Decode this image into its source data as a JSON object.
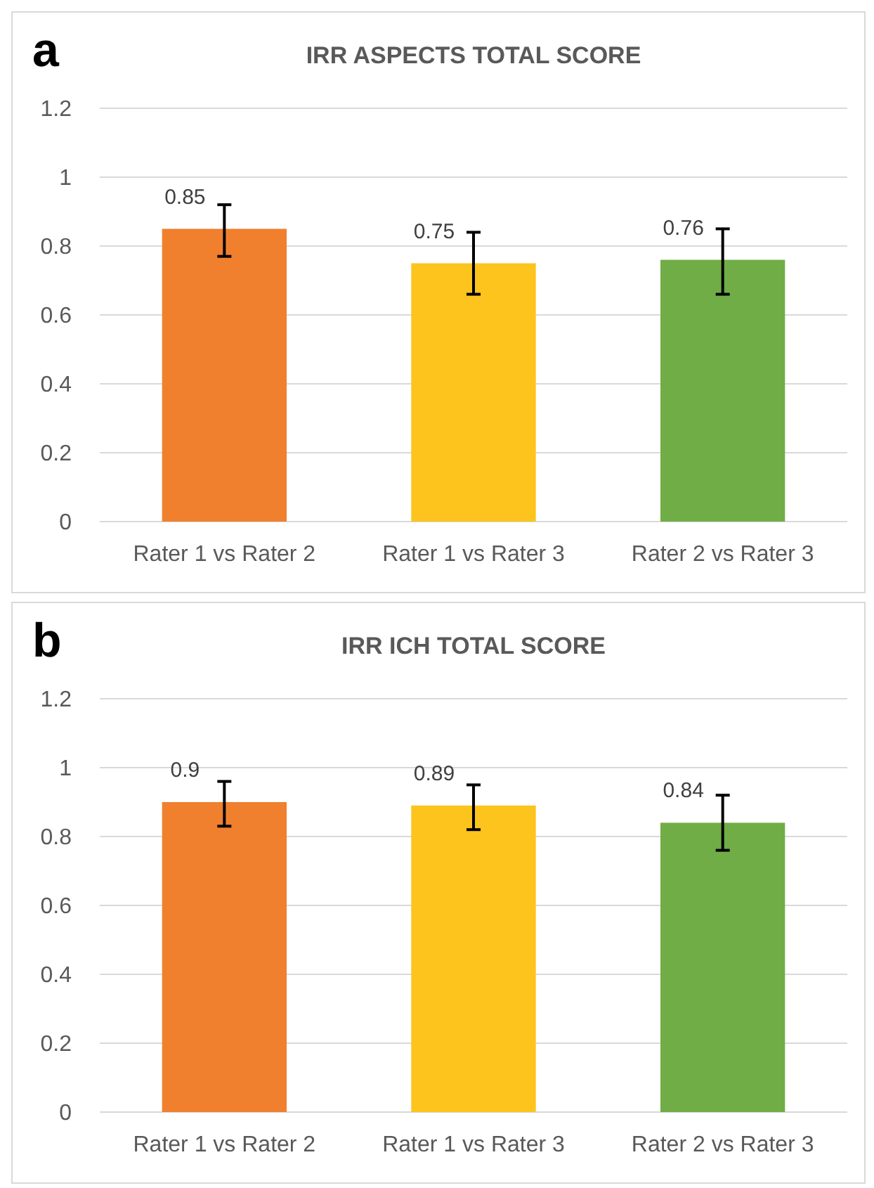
{
  "chart_data": [
    {
      "type": "bar",
      "title": "IRR ASPECTS TOTAL SCORE",
      "annotations": [
        "a"
      ],
      "categories": [
        "Rater 1 vs Rater 2",
        "Rater 1 vs Rater 3",
        "Rater 2 vs Rater 3"
      ],
      "values": [
        0.85,
        0.75,
        0.76
      ],
      "colors": [
        "#f0802e",
        "#fcc41c",
        "#70ad47"
      ],
      "errors": [
        [
          0.77,
          0.92
        ],
        [
          0.66,
          0.84
        ],
        [
          0.66,
          0.85
        ]
      ],
      "data_labels": true,
      "ylim": [
        0,
        1.2
      ],
      "yticks": [
        0,
        0.2,
        0.4,
        0.6,
        0.8,
        1,
        1.2
      ],
      "grid": "y"
    },
    {
      "type": "bar",
      "title": "IRR ICH TOTAL SCORE",
      "annotations": [
        "b"
      ],
      "categories": [
        "Rater 1 vs Rater 2",
        "Rater 1 vs Rater 3",
        "Rater 2 vs Rater 3"
      ],
      "values": [
        0.9,
        0.89,
        0.84
      ],
      "colors": [
        "#f0802e",
        "#fcc41c",
        "#70ad47"
      ],
      "errors": [
        [
          0.83,
          0.96
        ],
        [
          0.82,
          0.95
        ],
        [
          0.76,
          0.92
        ]
      ],
      "data_labels": true,
      "ylim": [
        0,
        1.2
      ],
      "yticks": [
        0,
        0.2,
        0.4,
        0.6,
        0.8,
        1,
        1.2
      ],
      "grid": "y"
    }
  ]
}
